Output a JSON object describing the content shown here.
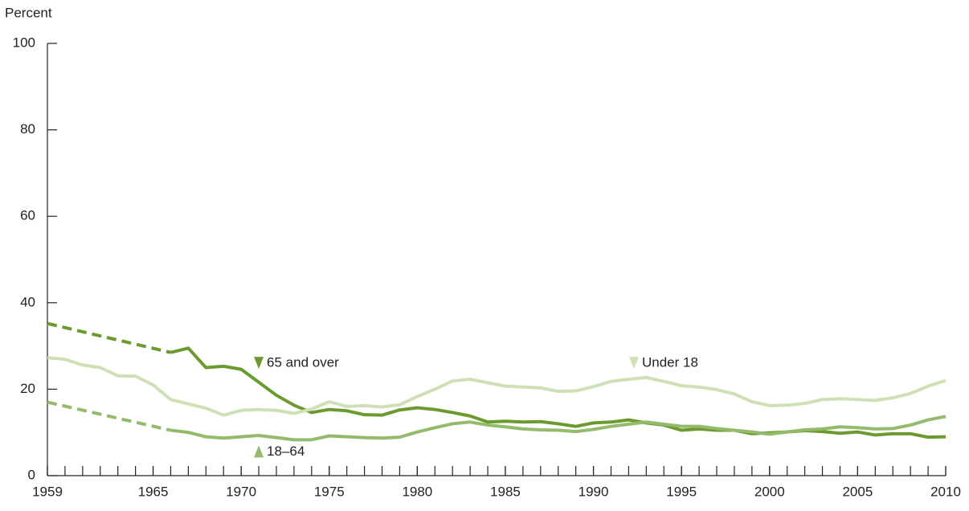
{
  "chart_data": {
    "type": "line",
    "y_axis_label": "Percent",
    "x": [
      1959,
      1960,
      1961,
      1962,
      1963,
      1964,
      1965,
      1966,
      1967,
      1968,
      1969,
      1970,
      1971,
      1972,
      1973,
      1974,
      1975,
      1976,
      1977,
      1978,
      1979,
      1980,
      1981,
      1982,
      1983,
      1984,
      1985,
      1986,
      1987,
      1988,
      1989,
      1990,
      1991,
      1992,
      1993,
      1994,
      1995,
      1996,
      1997,
      1998,
      1999,
      2000,
      2001,
      2002,
      2003,
      2004,
      2005,
      2006,
      2007,
      2008,
      2009,
      2010
    ],
    "series": [
      {
        "name": "65 and over",
        "color": "#6b9b2f",
        "marker": "down",
        "gap_style": "dashed",
        "values": [
          35.2,
          null,
          null,
          null,
          null,
          null,
          null,
          28.5,
          29.5,
          25.0,
          25.3,
          24.6,
          21.6,
          18.6,
          16.3,
          14.6,
          15.3,
          15.0,
          14.1,
          14.0,
          15.2,
          15.7,
          15.3,
          14.6,
          13.8,
          12.4,
          12.6,
          12.4,
          12.5,
          12.0,
          11.4,
          12.2,
          12.4,
          12.9,
          12.2,
          11.7,
          10.5,
          10.8,
          10.5,
          10.5,
          9.7,
          9.9,
          10.1,
          10.4,
          10.2,
          9.8,
          10.1,
          9.4,
          9.7,
          9.7,
          8.9,
          9.0
        ]
      },
      {
        "name": "Under 18",
        "color": "#d0e0b5",
        "marker": "down",
        "gap_style": "dashed",
        "values": [
          27.3,
          26.9,
          25.6,
          25.0,
          23.1,
          23.0,
          21.0,
          17.6,
          16.6,
          15.6,
          14.0,
          15.1,
          15.3,
          15.1,
          14.4,
          15.4,
          17.1,
          16.0,
          16.2,
          15.9,
          16.4,
          18.3,
          20.0,
          21.9,
          22.3,
          21.5,
          20.7,
          20.5,
          20.3,
          19.5,
          19.6,
          20.6,
          21.8,
          22.3,
          22.7,
          21.8,
          20.8,
          20.5,
          19.9,
          18.9,
          17.1,
          16.2,
          16.3,
          16.7,
          17.6,
          17.8,
          17.6,
          17.4,
          18.0,
          19.0,
          20.7,
          22.0
        ]
      },
      {
        "name": "18–64",
        "color": "#94ba6b",
        "marker": "up",
        "gap_style": "dashed",
        "values": [
          17.0,
          null,
          null,
          null,
          null,
          null,
          null,
          10.5,
          10.0,
          9.0,
          8.7,
          9.0,
          9.3,
          8.8,
          8.3,
          8.3,
          9.2,
          9.0,
          8.8,
          8.7,
          8.9,
          10.1,
          11.1,
          12.0,
          12.4,
          11.7,
          11.3,
          10.8,
          10.6,
          10.5,
          10.2,
          10.7,
          11.4,
          11.9,
          12.4,
          11.9,
          11.4,
          11.4,
          10.9,
          10.5,
          10.1,
          9.6,
          10.1,
          10.6,
          10.8,
          11.3,
          11.1,
          10.8,
          10.9,
          11.7,
          12.9,
          13.7
        ]
      }
    ],
    "xlim": [
      1959,
      2010
    ],
    "xticks": [
      1959,
      1965,
      1970,
      1975,
      1980,
      1985,
      1990,
      1995,
      2000,
      2005,
      2010
    ],
    "ylim": [
      0,
      100
    ],
    "yticks": [
      0,
      20,
      40,
      60,
      80,
      100
    ],
    "grid": false
  }
}
